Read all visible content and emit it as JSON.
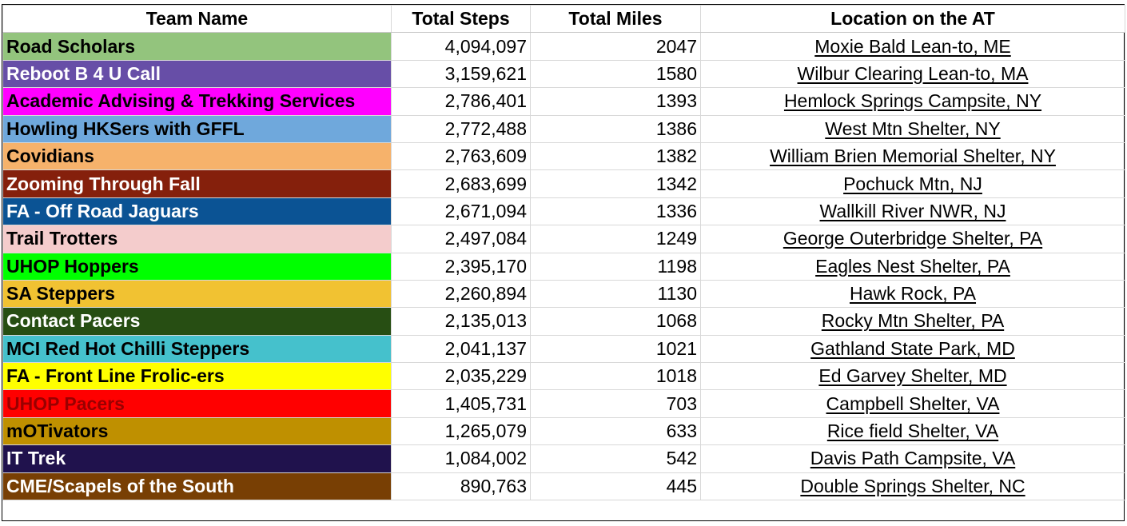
{
  "headers": {
    "team_name": "Team Name",
    "total_steps": "Total Steps",
    "total_miles": "Total Miles",
    "location": "Location on the AT"
  },
  "rows": [
    {
      "team": "Road Scholars",
      "steps": "4,094,097",
      "miles": "2047",
      "location": "Moxie Bald Lean-to, ME",
      "bg": "#93c47d",
      "fg": "#000000"
    },
    {
      "team": "Reboot B 4 U Call",
      "steps": "3,159,621",
      "miles": "1580",
      "location": "Wilbur Clearing Lean-to, MA",
      "bg": "#674ea7",
      "fg": "#ffffff"
    },
    {
      "team": "Academic Advising & Trekking Services",
      "steps": "2,786,401",
      "miles": "1393",
      "location": "Hemlock Springs Campsite, NY",
      "bg": "#ff00ff",
      "fg": "#000000"
    },
    {
      "team": "Howling HKSers with GFFL",
      "steps": "2,772,488",
      "miles": "1386",
      "location": "West Mtn Shelter, NY",
      "bg": "#6fa8dc",
      "fg": "#000000"
    },
    {
      "team": "Covidians",
      "steps": "2,763,609",
      "miles": "1382",
      "location": "William Brien Memorial Shelter, NY",
      "bg": "#f6b26b",
      "fg": "#000000"
    },
    {
      "team": "Zooming Through Fall",
      "steps": "2,683,699",
      "miles": "1342",
      "location": "Pochuck Mtn, NJ",
      "bg": "#85200c",
      "fg": "#ffffff"
    },
    {
      "team": "FA - Off Road Jaguars",
      "steps": "2,671,094",
      "miles": "1336",
      "location": "Wallkill River NWR, NJ",
      "bg": "#0b5394",
      "fg": "#ffffff"
    },
    {
      "team": "Trail Trotters",
      "steps": "2,497,084",
      "miles": "1249",
      "location": "George Outerbridge Shelter, PA",
      "bg": "#f4cccc",
      "fg": "#000000"
    },
    {
      "team": "UHOP Hoppers",
      "steps": "2,395,170",
      "miles": "1198",
      "location": "Eagles Nest Shelter, PA",
      "bg": "#00ff00",
      "fg": "#000000"
    },
    {
      "team": "SA Steppers",
      "steps": "2,260,894",
      "miles": "1130",
      "location": "Hawk Rock, PA",
      "bg": "#f1c232",
      "fg": "#000000"
    },
    {
      "team": "Contact Pacers",
      "steps": "2,135,013",
      "miles": "1068",
      "location": "Rocky Mtn Shelter, PA",
      "bg": "#274e13",
      "fg": "#ffffff"
    },
    {
      "team": "MCI Red Hot Chilli Steppers",
      "steps": "2,041,137",
      "miles": "1021",
      "location": "Gathland State Park, MD",
      "bg": "#45c1cc",
      "fg": "#000000"
    },
    {
      "team": "FA - Front Line Frolic-ers",
      "steps": "2,035,229",
      "miles": "1018",
      "location": "Ed Garvey Shelter, MD",
      "bg": "#ffff00",
      "fg": "#000000"
    },
    {
      "team": "UHOP Pacers",
      "steps": "1,405,731",
      "miles": "703",
      "location": "Campbell Shelter, VA",
      "bg": "#ff0000",
      "fg": "#990000"
    },
    {
      "team": "mOTivators",
      "steps": "1,265,079",
      "miles": "633",
      "location": "Rice field Shelter, VA",
      "bg": "#bf9000",
      "fg": "#000000"
    },
    {
      "team": "IT Trek",
      "steps": "1,084,002",
      "miles": "542",
      "location": "Davis Path Campsite, VA",
      "bg": "#20124d",
      "fg": "#ffffff"
    },
    {
      "team": "CME/Scapels of the South",
      "steps": "890,763",
      "miles": "445",
      "location": "Double Springs Shelter, NC",
      "bg": "#783f04",
      "fg": "#ffffff"
    }
  ]
}
